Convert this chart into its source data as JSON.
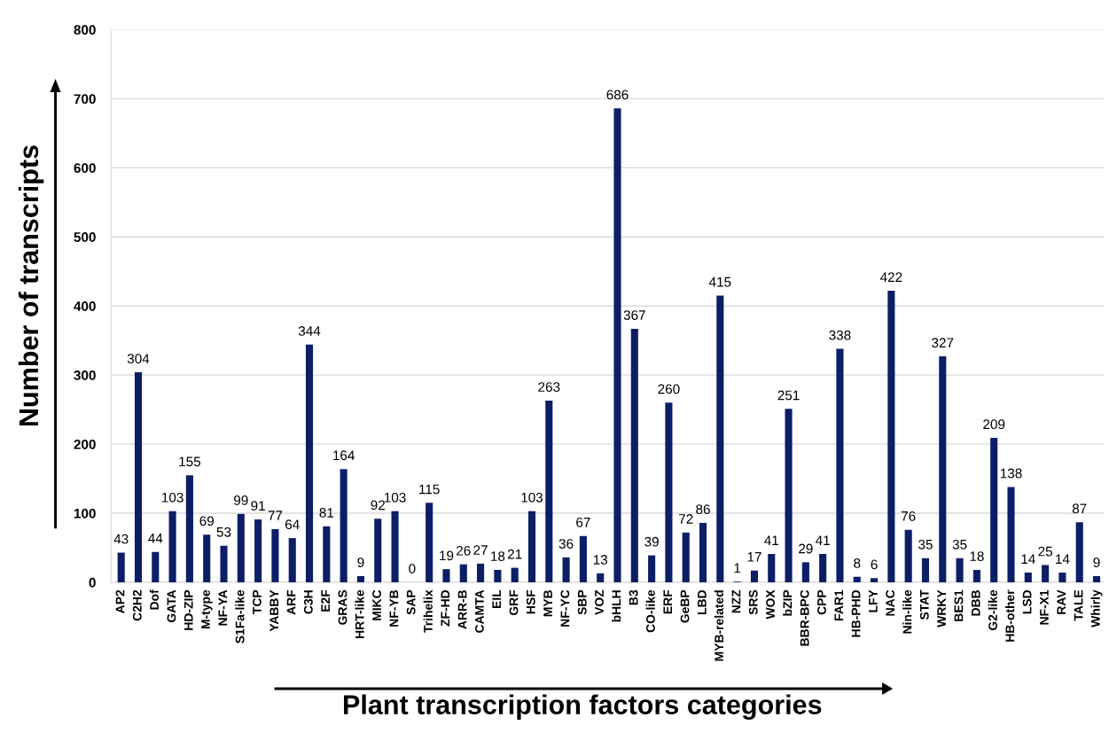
{
  "chart_data": {
    "type": "bar",
    "xlabel": "Plant transcription factors categories",
    "ylabel": "Number of transcripts",
    "categories": [
      "AP2",
      "C2H2",
      "Dof",
      "GATA",
      "HD-ZIP",
      "M-type",
      "NF-YA",
      "S1Fa-like",
      "TCP",
      "YABBY",
      "ARF",
      "C3H",
      "E2F",
      "GRAS",
      "HRT-like",
      "MIKC",
      "NF-YB",
      "SAP",
      "Trihelix",
      "ZF-HD",
      "ARR-B",
      "CAMTA",
      "EIL",
      "GRF",
      "HSF",
      "MYB",
      "NF-YC",
      "SBP",
      "VOZ",
      "bHLH",
      "B3",
      "CO-like",
      "ERF",
      "GeBP",
      "LBD",
      "MYB-related",
      "NZZ",
      "SRS",
      "WOX",
      "bZIP",
      "BBR-BPC",
      "CPP",
      "FAR1",
      "HB-PHD",
      "LFY",
      "NAC",
      "Nin-like",
      "STAT",
      "WRKY",
      "BES1",
      "DBB",
      "G2-like",
      "HB-other",
      "LSD",
      "NF-X1",
      "RAV",
      "TALE",
      "Whirly"
    ],
    "values": [
      43,
      304,
      44,
      103,
      155,
      69,
      53,
      99,
      91,
      77,
      64,
      344,
      81,
      164,
      9,
      92,
      103,
      0,
      115,
      19,
      26,
      27,
      18,
      21,
      103,
      263,
      36,
      67,
      13,
      686,
      367,
      39,
      260,
      72,
      86,
      415,
      1,
      17,
      41,
      251,
      29,
      41,
      338,
      8,
      6,
      422,
      76,
      35,
      327,
      35,
      18,
      209,
      138,
      14,
      25,
      14,
      87,
      9
    ],
    "color": "#0c1f66",
    "ylim": [
      0,
      800
    ],
    "yticks": [
      0,
      100,
      200,
      300,
      400,
      500,
      600,
      700,
      800
    ],
    "grid": "y",
    "data_labels": true
  }
}
